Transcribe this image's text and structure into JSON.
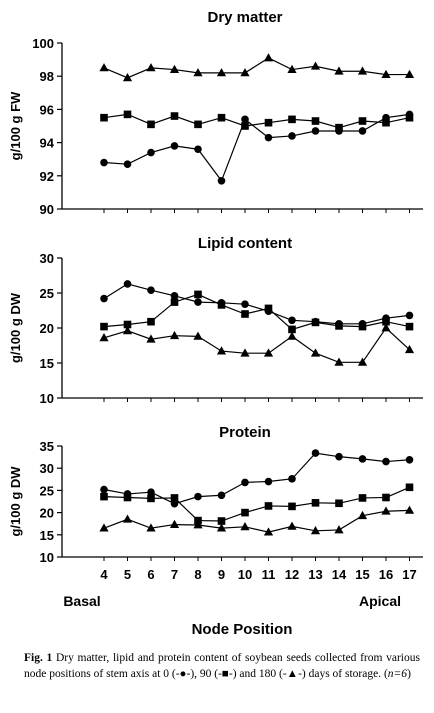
{
  "x_axis": {
    "label": "Node Position",
    "ticks": [
      4,
      5,
      6,
      7,
      8,
      9,
      10,
      11,
      12,
      13,
      14,
      15,
      16,
      17
    ],
    "range": [
      4,
      17
    ],
    "end_labels": {
      "left": "Basal",
      "right": "Apical"
    }
  },
  "chart_data": [
    {
      "type": "line",
      "title": "Dry matter",
      "ylabel": "g/100 g FW",
      "ylim": [
        90,
        100
      ],
      "yticks": [
        90,
        92,
        94,
        96,
        98,
        100
      ],
      "grid": false,
      "x": [
        4,
        5,
        6,
        7,
        8,
        9,
        10,
        11,
        12,
        13,
        14,
        15,
        16,
        17
      ],
      "series": [
        {
          "marker": "circle",
          "values": [
            92.8,
            92.7,
            93.4,
            93.8,
            93.6,
            91.7,
            95.4,
            94.3,
            94.4,
            94.7,
            94.7,
            94.7,
            95.5,
            95.7
          ]
        },
        {
          "marker": "square",
          "values": [
            95.5,
            95.7,
            95.1,
            95.6,
            95.1,
            95.5,
            95.0,
            95.2,
            95.4,
            95.3,
            94.9,
            95.3,
            95.2,
            95.5
          ]
        },
        {
          "marker": "triangle",
          "values": [
            98.5,
            97.9,
            98.5,
            98.4,
            98.2,
            98.2,
            98.2,
            99.1,
            98.4,
            98.6,
            98.3,
            98.3,
            98.1,
            98.1
          ]
        }
      ]
    },
    {
      "type": "line",
      "title": "Lipid content",
      "ylabel": "g/100 g DW",
      "ylim": [
        10,
        30
      ],
      "yticks": [
        10,
        15,
        20,
        25,
        30
      ],
      "grid": false,
      "x": [
        4,
        5,
        6,
        7,
        8,
        9,
        10,
        11,
        12,
        13,
        14,
        15,
        16,
        17
      ],
      "series": [
        {
          "marker": "circle",
          "values": [
            24.2,
            26.3,
            25.4,
            24.6,
            23.7,
            23.6,
            23.4,
            22.4,
            21.1,
            20.9,
            20.6,
            20.6,
            21.4,
            21.8
          ]
        },
        {
          "marker": "square",
          "values": [
            20.2,
            20.5,
            20.9,
            23.7,
            24.8,
            23.3,
            22.0,
            22.8,
            19.8,
            20.8,
            20.3,
            20.2,
            20.9,
            20.2
          ]
        },
        {
          "marker": "triangle",
          "values": [
            18.6,
            19.6,
            18.4,
            18.9,
            18.8,
            16.7,
            16.4,
            16.4,
            18.8,
            16.4,
            15.1,
            15.1,
            20.0,
            16.9
          ]
        }
      ]
    },
    {
      "type": "line",
      "title": "Protein",
      "ylabel": "g/100 g DW",
      "ylim": [
        10,
        35
      ],
      "yticks": [
        10,
        15,
        20,
        25,
        30,
        35
      ],
      "grid": false,
      "x": [
        4,
        5,
        6,
        7,
        8,
        9,
        10,
        11,
        12,
        13,
        14,
        15,
        16,
        17
      ],
      "series": [
        {
          "marker": "circle",
          "values": [
            25.2,
            24.2,
            24.6,
            22.0,
            23.6,
            23.9,
            26.8,
            27.0,
            27.6,
            33.4,
            32.6,
            32.1,
            31.5,
            31.9
          ]
        },
        {
          "marker": "square",
          "values": [
            23.6,
            23.4,
            23.2,
            23.3,
            18.2,
            18.1,
            20.0,
            21.5,
            21.4,
            22.2,
            22.1,
            23.3,
            23.4,
            25.7
          ]
        },
        {
          "marker": "triangle",
          "values": [
            16.5,
            18.5,
            16.5,
            17.3,
            17.2,
            16.5,
            16.8,
            15.6,
            16.9,
            15.9,
            16.1,
            19.3,
            20.3,
            20.5
          ]
        }
      ]
    }
  ],
  "caption": {
    "label": "Fig. 1",
    "text_before_n": "Dry matter, lipid and protein content of soybean seeds collected from various node positions of stem axis at 0 (-●-), 90 (-■-) and 180 (-▲-) days of storage. (",
    "n_text": "n=6",
    "text_after_n": ")"
  },
  "colors": {
    "ink": "#000000",
    "background": "#ffffff"
  }
}
